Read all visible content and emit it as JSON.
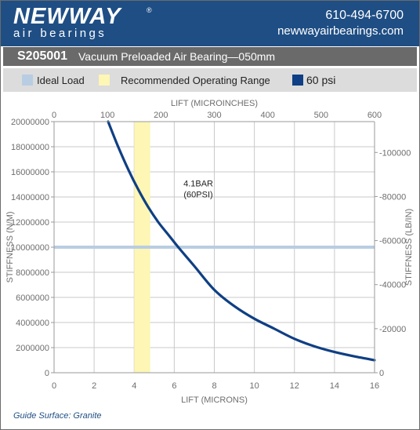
{
  "header": {
    "brand_name": "NEWWAY",
    "brand_reg": "®",
    "brand_sub": "air bearings",
    "phone": "610-494-6700",
    "website": "newwayairbearings.com"
  },
  "title_bar": {
    "code": "S205001",
    "description": "Vacuum Preloaded Air Bearing—050mm"
  },
  "legend": [
    {
      "label": "Ideal Load",
      "color": "#b9cde2"
    },
    {
      "label": "Recommended Operating Range",
      "color": "#fdf6b5"
    },
    {
      "label": "60 psi",
      "color": "#0f3f84"
    }
  ],
  "footer": {
    "guide_surface": "Guide Surface: Granite"
  },
  "chart_data": {
    "type": "line",
    "xlabel": "LIFT (MICRONS)",
    "x2label": "LIFT (MICROINCHES)",
    "ylabel": "STIFFNESS (N/M)",
    "y2label": "STIFFNESS (LB/IN)",
    "xlim": [
      0,
      16
    ],
    "x2lim": [
      0,
      600
    ],
    "ylim": [
      0,
      20000000
    ],
    "y2lim": [
      0,
      114000
    ],
    "x_ticks": [
      "0",
      "2",
      "4",
      "6",
      "8",
      "10",
      "12",
      "14",
      "16"
    ],
    "x2_ticks": [
      "0",
      "100",
      "200",
      "300",
      "400",
      "500",
      "600"
    ],
    "y_ticks": [
      "0",
      "2000000",
      "4000000",
      "6000000",
      "8000000",
      "10000000",
      "12000000",
      "14000000",
      "16000000",
      "18000000",
      "20000000"
    ],
    "y2_ticks": [
      "0",
      "-20000",
      "-40000",
      "-60000",
      "-80000",
      "-100000"
    ],
    "grid": true,
    "series": [
      {
        "name": "60 psi",
        "color": "#0f3f84",
        "x": [
          2.7,
          3.2,
          3.7,
          4.2,
          4.7,
          5.2,
          5.7,
          6.2,
          7.0,
          8.0,
          9.0,
          10.0,
          11.0,
          12.0,
          13.0,
          14.0,
          15.0,
          16.0
        ],
        "y": [
          20000000,
          18000000,
          16200000,
          14600000,
          13200000,
          12000000,
          11000000,
          10000000,
          8500000,
          6600000,
          5300000,
          4300000,
          3500000,
          2700000,
          2100000,
          1650000,
          1300000,
          1000000
        ]
      }
    ],
    "ideal_load_line": {
      "label": "Ideal Load",
      "y": 10000000
    },
    "recommended_range": {
      "label": "Recommended Operating Range",
      "x": [
        4.0,
        4.8
      ]
    },
    "annotation": {
      "line1": "4.1BAR",
      "line2": "(60PSI)",
      "x": 7.2,
      "y": 14600000
    }
  }
}
